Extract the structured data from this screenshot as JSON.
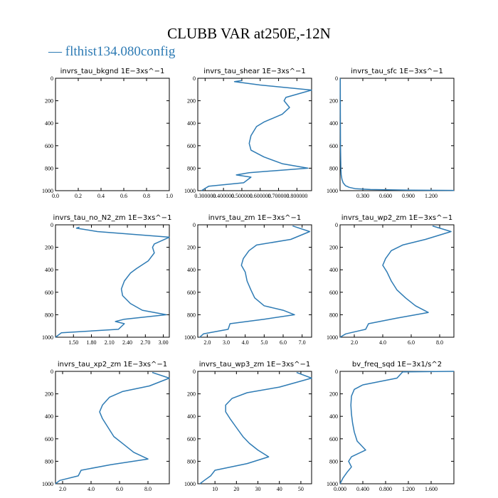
{
  "figure": {
    "title": "CLUBB VAR at250E,-12N",
    "legend": "— flthist134.080config",
    "series_color": "#2e7bb4"
  },
  "chart_data": [
    {
      "type": "line",
      "title": "invrs_tau_bkgnd   1E−3xs^−1",
      "xlim": [
        0,
        1
      ],
      "ylim": [
        1000,
        0
      ],
      "x_ticks": [
        "0.0",
        "0.2",
        "0.4",
        "0.6",
        "0.8",
        "1.0"
      ],
      "x_tick_values": [
        0,
        0.2,
        0.4,
        0.6,
        0.8,
        1.0
      ],
      "y_ticks": [
        "0",
        "200",
        "400",
        "600",
        "800",
        "1000"
      ],
      "y_tick_values": [
        0,
        200,
        400,
        600,
        800,
        1000
      ],
      "series": [
        {
          "x": [],
          "y": []
        }
      ]
    },
    {
      "type": "line",
      "title": "invrs_tau_shear   1E−3xs^−1",
      "xlim": [
        0.26,
        0.88
      ],
      "ylim": [
        1000,
        0
      ],
      "x_ticks": [
        "0.300000",
        "0.400000",
        "0.500000",
        "0.600000",
        "0.700000",
        "0.800000"
      ],
      "x_tick_values": [
        0.3,
        0.4,
        0.5,
        0.6,
        0.7,
        0.8
      ],
      "y_ticks": [
        "0",
        "200",
        "400",
        "600",
        "800",
        "1000"
      ],
      "y_tick_values": [
        0,
        200,
        400,
        600,
        800,
        1000
      ],
      "series": [
        {
          "x": [
            0.5,
            0.46,
            0.6,
            0.88,
            0.74,
            0.73,
            0.76,
            0.72,
            0.62,
            0.58,
            0.55,
            0.54,
            0.55,
            0.62,
            0.72,
            0.86,
            0.54,
            0.47,
            0.55,
            0.51,
            0.32,
            0.28
          ],
          "y": [
            20,
            30,
            60,
            105,
            170,
            200,
            260,
            320,
            390,
            430,
            510,
            580,
            640,
            700,
            760,
            800,
            840,
            860,
            880,
            930,
            960,
            1000
          ]
        }
      ]
    },
    {
      "type": "line",
      "title": "invrs_tau_sfc   1E−3xs^−1",
      "xlim": [
        0,
        1.5
      ],
      "ylim": [
        1000,
        0
      ],
      "x_ticks": [
        "0.300",
        "0.600",
        "0.900",
        "1.200"
      ],
      "x_tick_values": [
        0.3,
        0.6,
        0.9,
        1.2
      ],
      "y_ticks": [
        "0",
        "200",
        "400",
        "600",
        "800",
        "1000"
      ],
      "y_tick_values": [
        0,
        200,
        400,
        600,
        800,
        1000
      ],
      "series": [
        {
          "x": [
            0.003,
            0.004,
            0.006,
            0.01,
            0.015,
            0.025,
            0.04,
            0.07,
            0.12,
            0.2,
            0.4,
            0.9,
            1.5
          ],
          "y": [
            0,
            300,
            600,
            800,
            860,
            900,
            930,
            955,
            970,
            982,
            990,
            995,
            998
          ]
        }
      ]
    },
    {
      "type": "line",
      "title": "invrs_tau_no_N2_zm   1E−3xs^−1",
      "xlim": [
        1.2,
        3.1
      ],
      "ylim": [
        1000,
        0
      ],
      "x_ticks": [
        "1.50",
        "1.80",
        "2.10",
        "2.40",
        "2.70",
        "3.00"
      ],
      "x_tick_values": [
        1.5,
        1.8,
        2.1,
        2.4,
        2.7,
        3.0
      ],
      "y_ticks": [
        "0",
        "200",
        "400",
        "600",
        "800",
        "1000"
      ],
      "y_tick_values": [
        0,
        200,
        400,
        600,
        800,
        1000
      ],
      "series": [
        {
          "x": [
            1.6,
            1.55,
            1.9,
            3.1,
            2.85,
            2.82,
            2.85,
            2.75,
            2.55,
            2.45,
            2.35,
            2.3,
            2.32,
            2.45,
            2.65,
            3.05,
            2.35,
            2.2,
            2.35,
            2.25,
            1.3,
            1.2
          ],
          "y": [
            20,
            30,
            60,
            110,
            170,
            200,
            250,
            320,
            390,
            430,
            500,
            570,
            630,
            700,
            760,
            800,
            840,
            860,
            880,
            930,
            960,
            1000
          ]
        }
      ]
    },
    {
      "type": "line",
      "title": "invrs_tau_zm   1E−3xs^−1",
      "xlim": [
        1.5,
        7.5
      ],
      "ylim": [
        1000,
        0
      ],
      "x_ticks": [
        "2.0",
        "3.0",
        "4.0",
        "5.0",
        "6.0",
        "7.0"
      ],
      "x_tick_values": [
        2,
        3,
        4,
        5,
        6,
        7
      ],
      "y_ticks": [
        "0",
        "200",
        "400",
        "600",
        "800",
        "1000"
      ],
      "y_tick_values": [
        0,
        200,
        400,
        600,
        800,
        1000
      ],
      "series": [
        {
          "x": [
            6.5,
            7.4,
            6.4,
            4.6,
            4.2,
            3.9,
            3.8,
            4.0,
            4.1,
            4.3,
            4.5,
            5.0,
            6.0,
            6.6,
            5.0,
            3.2,
            3.1,
            1.8,
            1.6
          ],
          "y": [
            10,
            60,
            130,
            180,
            230,
            300,
            360,
            420,
            500,
            580,
            650,
            720,
            760,
            800,
            840,
            880,
            930,
            970,
            1000
          ]
        }
      ]
    },
    {
      "type": "line",
      "title": "invrs_tau_wp2_zm   1E−3xs^−1",
      "xlim": [
        1.0,
        9.0
      ],
      "ylim": [
        1000,
        0
      ],
      "x_ticks": [
        "2.0",
        "4.0",
        "6.0",
        "8.0"
      ],
      "x_tick_values": [
        2,
        4,
        6,
        8
      ],
      "y_ticks": [
        "0",
        "200",
        "400",
        "600",
        "800",
        "1000"
      ],
      "y_tick_values": [
        0,
        200,
        400,
        600,
        800,
        1000
      ],
      "series": [
        {
          "x": [
            7.5,
            8.8,
            7.0,
            5.4,
            4.6,
            4.2,
            4.0,
            4.3,
            4.6,
            5.0,
            5.6,
            6.3,
            7.2,
            5.0,
            3.0,
            2.8,
            1.4,
            1.0
          ],
          "y": [
            10,
            60,
            130,
            180,
            230,
            300,
            360,
            420,
            500,
            580,
            650,
            720,
            780,
            830,
            880,
            930,
            970,
            1000
          ]
        }
      ]
    },
    {
      "type": "line",
      "title": "invrs_tau_xp2_zm   1E−3xs^−1",
      "xlim": [
        1.5,
        9.5
      ],
      "ylim": [
        1000,
        0
      ],
      "x_ticks": [
        "2.0",
        "4.0",
        "6.0",
        "8.0"
      ],
      "x_tick_values": [
        2,
        4,
        6,
        8
      ],
      "y_ticks": [
        "0",
        "200",
        "400",
        "600",
        "800",
        "1000"
      ],
      "y_tick_values": [
        0,
        200,
        400,
        600,
        800,
        1000
      ],
      "series": [
        {
          "x": [
            8.3,
            9.5,
            8.1,
            6.2,
            5.3,
            4.8,
            4.6,
            4.8,
            5.2,
            5.6,
            6.3,
            7.0,
            8.0,
            5.4,
            3.3,
            3.1,
            1.8,
            1.5
          ],
          "y": [
            10,
            60,
            130,
            180,
            230,
            300,
            360,
            420,
            500,
            580,
            650,
            720,
            780,
            830,
            880,
            930,
            970,
            1000
          ]
        }
      ]
    },
    {
      "type": "line",
      "title": "invrs_tau_wp3_zm   1E−3xs^−1",
      "xlim": [
        2,
        55
      ],
      "ylim": [
        1000,
        0
      ],
      "x_ticks": [
        "10",
        "20",
        "30",
        "40",
        "50"
      ],
      "x_tick_values": [
        10,
        20,
        30,
        40,
        50
      ],
      "y_ticks": [
        "0",
        "200",
        "400",
        "600",
        "800",
        "1000"
      ],
      "y_tick_values": [
        0,
        200,
        400,
        600,
        800,
        1000
      ],
      "series": [
        {
          "x": [
            48,
            55,
            40,
            25,
            18,
            15,
            15,
            17,
            20,
            23,
            26,
            30,
            35,
            25,
            10,
            8,
            5,
            3
          ],
          "y": [
            10,
            60,
            140,
            190,
            240,
            300,
            360,
            420,
            500,
            580,
            640,
            700,
            760,
            820,
            880,
            930,
            970,
            1000
          ]
        }
      ]
    },
    {
      "type": "line",
      "title": "bv_freq_sqd   1E−3x1/s^2",
      "xlim": [
        0,
        2.0
      ],
      "ylim": [
        1000,
        0
      ],
      "x_ticks": [
        "0.000",
        "0.400",
        "0.800",
        "1.200",
        "1.600"
      ],
      "x_tick_values": [
        0,
        0.4,
        0.8,
        1.2,
        1.6
      ],
      "y_ticks": [
        "0",
        "200",
        "400",
        "600",
        "800",
        "1000"
      ],
      "y_tick_values": [
        0,
        200,
        400,
        600,
        800,
        1000
      ],
      "series": [
        {
          "x": [
            2.0,
            1.1,
            1.0,
            0.4,
            0.25,
            0.2,
            0.19,
            0.2,
            0.22,
            0.25,
            0.3,
            0.45,
            0.2,
            0.15,
            0.2,
            0.12,
            0.05,
            0.0
          ],
          "y": [
            0,
            5,
            60,
            120,
            160,
            220,
            300,
            380,
            460,
            540,
            620,
            700,
            760,
            800,
            850,
            900,
            950,
            1000
          ]
        }
      ]
    }
  ]
}
